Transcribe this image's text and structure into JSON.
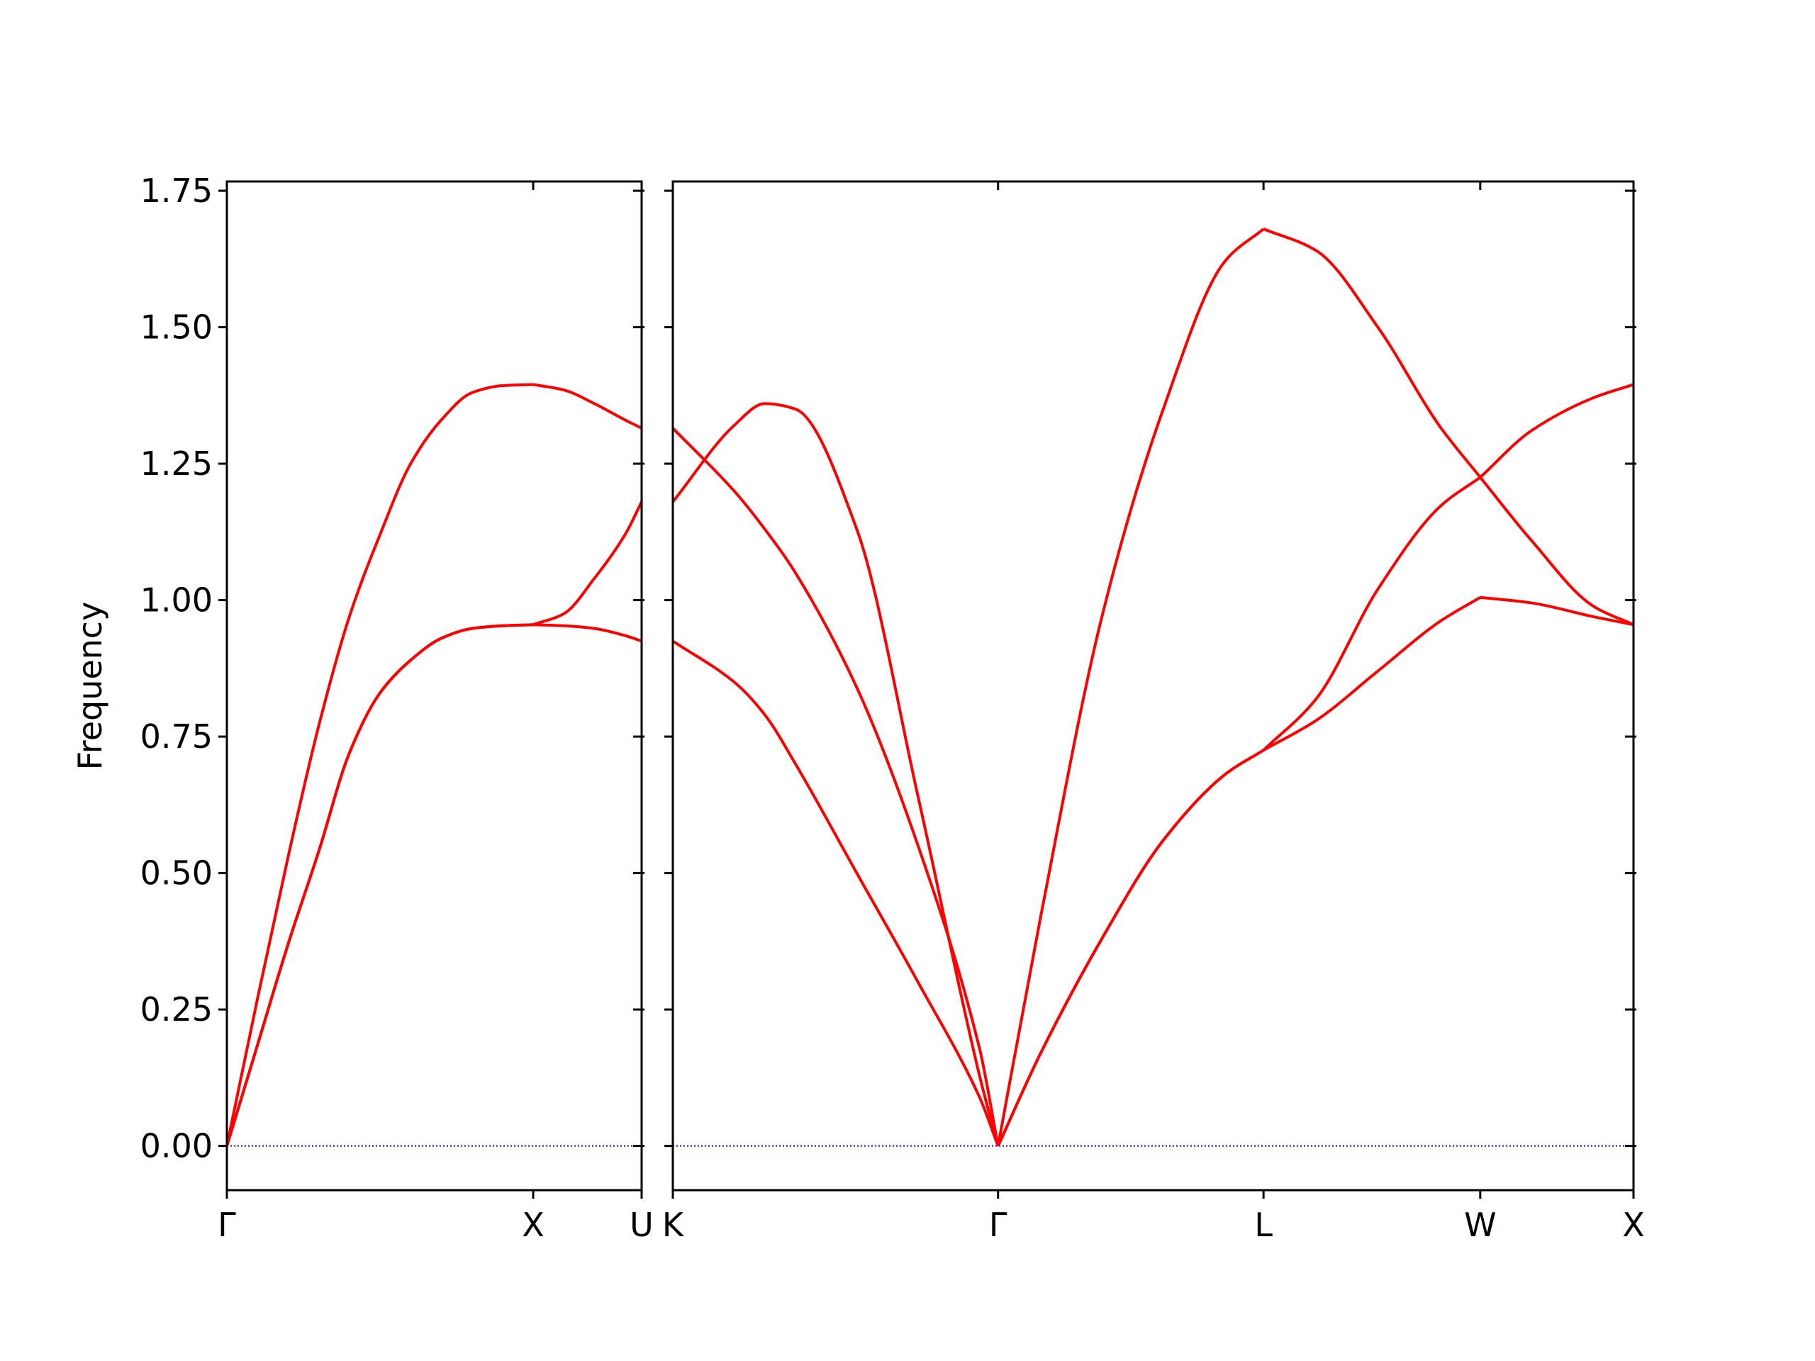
{
  "chart_data": [
    {
      "type": "line",
      "ylabel": "Frequency",
      "x": [
        0,
        0.1,
        0.2,
        0.3,
        0.4,
        0.5,
        0.6,
        0.7,
        0.8,
        0.9,
        1.0,
        1.1,
        1.2,
        1.3,
        1.354
      ],
      "series": [
        {
          "color": "#ff0000",
          "values": [
            0,
            0.185,
            0.37,
            0.54,
            0.72,
            0.83,
            0.89,
            0.93,
            0.948,
            0.953,
            0.955,
            0.953,
            0.948,
            0.935,
            0.925
          ]
        },
        {
          "color": "#ff0000",
          "values": [
            0,
            0.185,
            0.37,
            0.54,
            0.72,
            0.83,
            0.89,
            0.93,
            0.948,
            0.953,
            0.955,
            0.975,
            1.04,
            1.12,
            1.18
          ]
        },
        {
          "color": "#ff0000",
          "values": [
            0,
            0.27,
            0.53,
            0.77,
            0.97,
            1.12,
            1.25,
            1.33,
            1.38,
            1.393,
            1.395,
            1.385,
            1.36,
            1.33,
            1.315
          ]
        }
      ],
      "hlines": [
        {
          "value": 0,
          "color": "#0000cc"
        }
      ],
      "xlim": [
        0,
        1.354
      ],
      "ylim": [
        -0.081,
        1.767
      ],
      "xticks": [
        {
          "value": 0,
          "label": "Γ"
        },
        {
          "value": 1.0,
          "label": "X"
        },
        {
          "value": 1.354,
          "label": "U"
        }
      ],
      "yticks": [
        {
          "value": 0,
          "label": "0.00"
        },
        {
          "value": 0.25,
          "label": "0.25"
        },
        {
          "value": 0.5,
          "label": "0.50"
        },
        {
          "value": 0.75,
          "label": "0.75"
        },
        {
          "value": 1.0,
          "label": "1.00"
        },
        {
          "value": 1.25,
          "label": "1.25"
        },
        {
          "value": 1.5,
          "label": "1.50"
        },
        {
          "value": 1.75,
          "label": "1.75"
        }
      ]
    },
    {
      "type": "line",
      "x": [
        0,
        0.2,
        0.3,
        0.4,
        0.6,
        0.8,
        1.0,
        1.061,
        1.2,
        1.4,
        1.6,
        1.8,
        1.927,
        2.1,
        2.3,
        2.5,
        2.634,
        2.8,
        3.0,
        3.134
      ],
      "series": [
        {
          "color": "#ff0000",
          "values": [
            0.925,
            0.85,
            0.79,
            0.7,
            0.5,
            0.3,
            0.09,
            0,
            0.17,
            0.38,
            0.56,
            0.68,
            0.725,
            0.78,
            0.87,
            0.96,
            1.005,
            0.995,
            0.97,
            0.955
          ]
        },
        {
          "color": "#ff0000",
          "values": [
            1.315,
            1.2,
            1.13,
            1.05,
            0.84,
            0.55,
            0.18,
            0,
            0.17,
            0.38,
            0.56,
            0.68,
            0.725,
            0.82,
            1.02,
            1.17,
            1.225,
            1.11,
            0.99,
            0.955
          ]
        },
        {
          "color": "#ff0000",
          "values": [
            1.18,
            1.32,
            1.36,
            1.35,
            1.13,
            0.64,
            0.13,
            0,
            0.42,
            0.97,
            1.35,
            1.62,
            1.68,
            1.64,
            1.5,
            1.32,
            1.225,
            1.31,
            1.37,
            1.395
          ]
        }
      ],
      "hlines": [
        {
          "value": 0,
          "color": "#0000cc"
        }
      ],
      "xlim": [
        0,
        3.134
      ],
      "ylim": [
        -0.081,
        1.767
      ],
      "xticks": [
        {
          "value": 0,
          "label": "K"
        },
        {
          "value": 1.061,
          "label": "Γ"
        },
        {
          "value": 1.927,
          "label": "L"
        },
        {
          "value": 2.634,
          "label": "W"
        },
        {
          "value": 3.134,
          "label": "X"
        }
      ],
      "yticks": [
        0,
        0.25,
        0.5,
        0.75,
        1.0,
        1.25,
        1.5,
        1.75
      ]
    }
  ]
}
